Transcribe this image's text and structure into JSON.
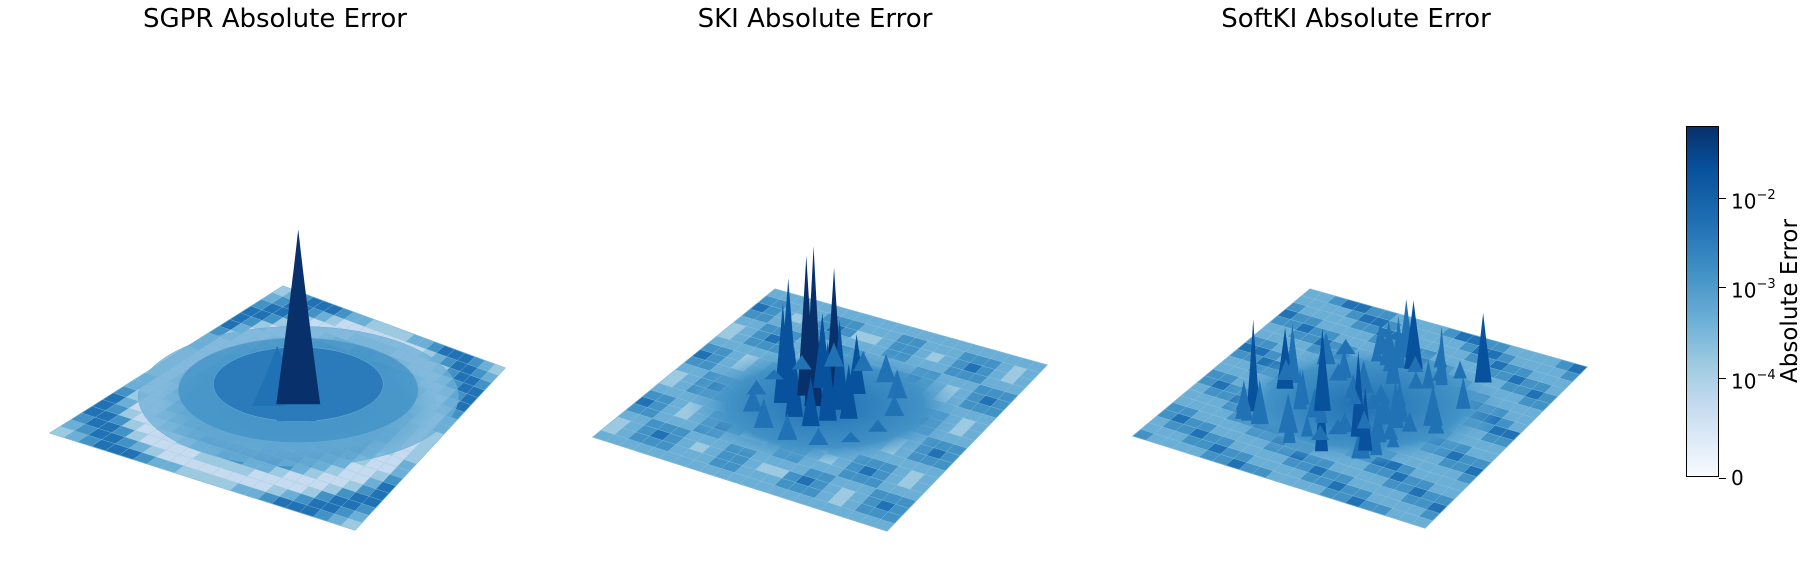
{
  "chart_data": [
    {
      "type": "surface3d",
      "title": "SGPR Absolute Error",
      "colormap": "Blues",
      "peak_shape": "single central peak with concentric ripples",
      "approx_peak_value": 0.04,
      "approx_background_value": 0.0005
    },
    {
      "type": "surface3d",
      "title": "SKI Absolute Error",
      "colormap": "Blues",
      "peak_shape": "cluster of many narrow central spikes",
      "approx_peak_value": 0.03,
      "approx_background_value": 0.0008
    },
    {
      "type": "surface3d",
      "title": "SoftKI Absolute Error",
      "colormap": "Blues",
      "peak_shape": "many scattered small spikes across the surface",
      "approx_peak_value": 0.004,
      "approx_background_value": 0.0004
    }
  ],
  "colorbar": {
    "label": "Absolute Error",
    "scale": "symlog",
    "colors": [
      "#f7fbff",
      "#deebf7",
      "#c6dbef",
      "#9ecae1",
      "#6baed6",
      "#4292c6",
      "#2171b5",
      "#08519c",
      "#08306b"
    ],
    "ticks": [
      {
        "base": "0",
        "exp": "",
        "value": 0
      },
      {
        "base": "10",
        "exp": "−4",
        "value": 0.0001
      },
      {
        "base": "10",
        "exp": "−3",
        "value": 0.001
      },
      {
        "base": "10",
        "exp": "−2",
        "value": 0.01
      }
    ]
  }
}
